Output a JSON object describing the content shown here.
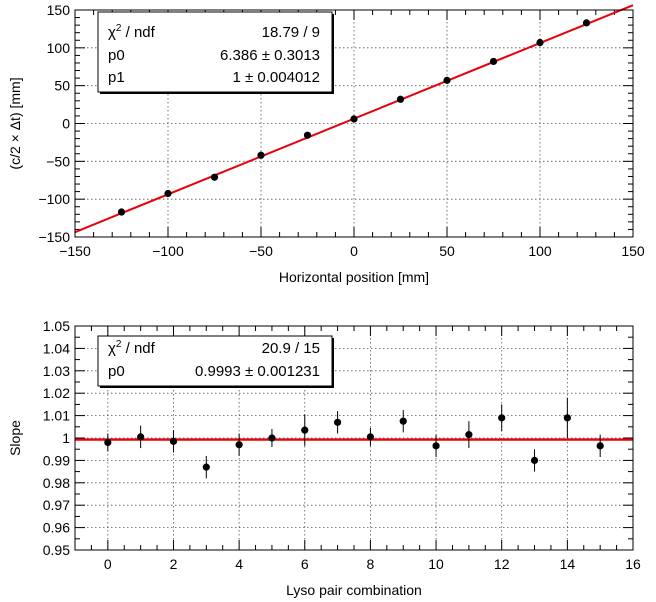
{
  "chart_data": [
    {
      "type": "scatter",
      "title": "",
      "xlabel": "Horizontal position [mm]",
      "ylabel": "(c/2 × Δt) [mm]",
      "xlim": [
        -150,
        150
      ],
      "ylim": [
        -150,
        150
      ],
      "x_ticks": [
        -150,
        -100,
        -50,
        0,
        50,
        100,
        150
      ],
      "y_ticks": [
        -150,
        -100,
        -50,
        0,
        50,
        100,
        150
      ],
      "x_tick_labels": [
        "−150",
        "−100",
        "−50",
        "0",
        "50",
        "100",
        "150"
      ],
      "y_tick_labels": [
        "−150",
        "−100",
        "−50",
        "0",
        "50",
        "100",
        "150"
      ],
      "grid": true,
      "series": [
        {
          "x": [
            -125,
            -100,
            -75,
            -50,
            -25,
            0,
            25,
            50,
            75,
            100,
            125
          ],
          "y": [
            -117,
            -92.5,
            -71,
            -42,
            -15.5,
            6,
            32,
            57,
            82,
            107,
            133
          ],
          "color": "#000000"
        }
      ],
      "fit": {
        "function": "p0 + p1·x",
        "p0": 6.386,
        "p1": 1,
        "color": "#e8000b"
      },
      "stats_box": {
        "rows": [
          {
            "label_html": "χ<tspan baseline-shift=\"super\" font-size=\"10\">2</tspan> / ndf",
            "label": "χ2 / ndf",
            "value": "18.79 / 9"
          },
          {
            "label": "p0",
            "value": "6.386 ± 0.3013"
          },
          {
            "label": "p1",
            "value": "1 ± 0.004012"
          }
        ],
        "placement": "top-left"
      }
    },
    {
      "type": "scatter",
      "title": "",
      "xlabel": "Lyso pair combination",
      "ylabel": "Slope",
      "xlim": [
        -1,
        16
      ],
      "ylim": [
        0.95,
        1.05
      ],
      "x_ticks": [
        0,
        2,
        4,
        6,
        8,
        10,
        12,
        14,
        16
      ],
      "x_tick_labels": [
        "0",
        "2",
        "4",
        "6",
        "8",
        "10",
        "12",
        "14",
        "16"
      ],
      "y_ticks": [
        0.95,
        0.96,
        0.97,
        0.98,
        0.99,
        1.0,
        1.01,
        1.02,
        1.03,
        1.04,
        1.05
      ],
      "y_tick_labels": [
        "0.95",
        "0.96",
        "0.97",
        "0.98",
        "0.99",
        "1",
        "1.01",
        "1.02",
        "1.03",
        "1.04",
        "1.05"
      ],
      "grid": true,
      "series": [
        {
          "x": [
            0,
            1,
            2,
            3,
            4,
            5,
            6,
            7,
            8,
            9,
            10,
            11,
            12,
            13,
            14,
            15
          ],
          "y": [
            0.998,
            1.0005,
            0.9985,
            0.987,
            0.997,
            1.0,
            1.0035,
            1.007,
            1.0005,
            1.0075,
            0.9965,
            1.0015,
            1.009,
            0.99,
            1.009,
            0.9965
          ],
          "yerr": [
            0.004,
            0.005,
            0.005,
            0.005,
            0.005,
            0.004,
            0.007,
            0.005,
            0.004,
            0.005,
            0.005,
            0.006,
            0.006,
            0.005,
            0.009,
            0.005
          ],
          "color": "#000000"
        }
      ],
      "fit": {
        "function": "p0",
        "p0": 0.9993,
        "color": "#e8000b"
      },
      "stats_box": {
        "rows": [
          {
            "label": "χ2 / ndf",
            "value": "20.9 / 15"
          },
          {
            "label": "p0",
            "value": "0.9993 ± 0.001231"
          }
        ],
        "placement": "top-left"
      }
    }
  ]
}
